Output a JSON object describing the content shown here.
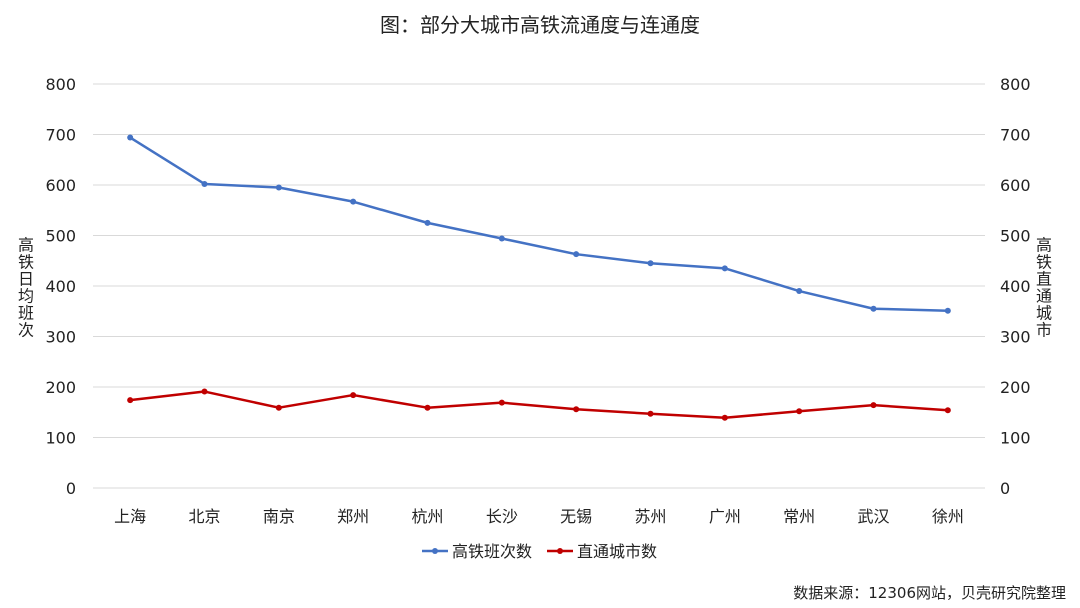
{
  "chart_data": {
    "type": "line",
    "title": "图：部分大城市高铁流通度与连通度",
    "categories": [
      "上海",
      "北京",
      "南京",
      "郑州",
      "杭州",
      "长沙",
      "无锡",
      "苏州",
      "广州",
      "常州",
      "武汉",
      "徐州"
    ],
    "series": [
      {
        "name": "高铁班次数",
        "color": "#4472C4",
        "axis": "left",
        "values": [
          694,
          602,
          595,
          567,
          525,
          494,
          463,
          445,
          435,
          390,
          355,
          351
        ]
      },
      {
        "name": "直通城市数",
        "color": "#C00000",
        "axis": "right",
        "values": [
          174,
          191,
          159,
          184,
          159,
          169,
          156,
          147,
          139,
          152,
          164,
          154
        ]
      }
    ],
    "ylabel": "高铁日均班次",
    "y2label": "高铁直通城市",
    "ylim": [
      0,
      800
    ],
    "y2lim": [
      0,
      800
    ],
    "yticks": [
      "0",
      "100",
      "200",
      "300",
      "400",
      "500",
      "600",
      "700",
      "800"
    ],
    "y2ticks": [
      "0",
      "100",
      "200",
      "300",
      "400",
      "500",
      "600",
      "700",
      "800"
    ],
    "grid": true,
    "legend": "bottom"
  },
  "source": "数据来源：12306网站，贝壳研究院整理"
}
